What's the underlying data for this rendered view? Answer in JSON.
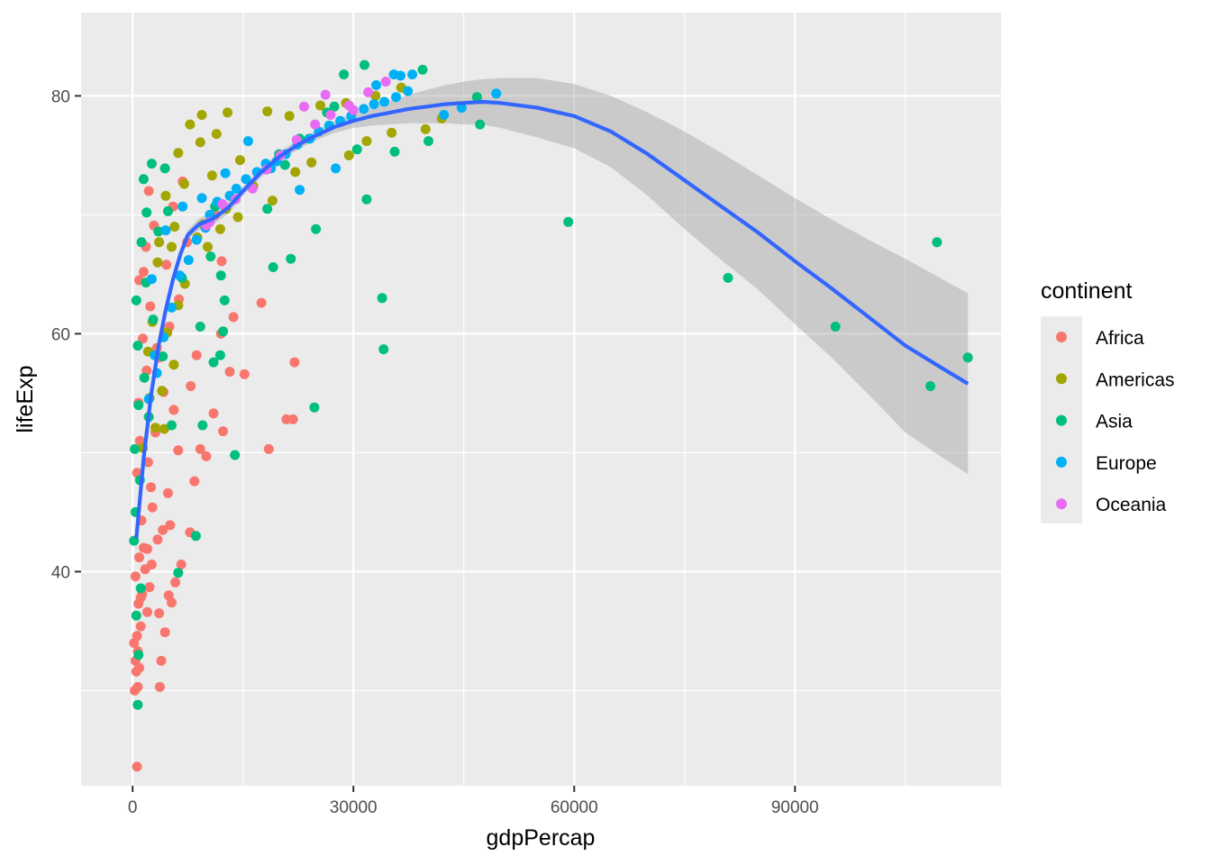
{
  "chart_data": {
    "type": "scatter",
    "xlabel": "gdpPercap",
    "ylabel": "lifeExp",
    "xlim": [
      -7000,
      118000
    ],
    "ylim": [
      22,
      87
    ],
    "x_ticks": [
      0,
      30000,
      60000,
      90000
    ],
    "x_tick_labels": [
      "0",
      "30000",
      "60000",
      "90000"
    ],
    "y_ticks": [
      40,
      60,
      80
    ],
    "y_tick_labels": [
      "40",
      "60",
      "80"
    ],
    "grid": true,
    "legend": {
      "title": "continent",
      "position": "right",
      "entries": [
        {
          "name": "Africa",
          "color": "#F8766D"
        },
        {
          "name": "Americas",
          "color": "#A3A500"
        },
        {
          "name": "Asia",
          "color": "#00BF7D"
        },
        {
          "name": "Europe",
          "color": "#00B0F6"
        },
        {
          "name": "Oceania",
          "color": "#E76BF3"
        }
      ]
    },
    "series": [
      {
        "name": "Africa",
        "color": "#F8766D",
        "points": [
          [
            600,
            23.6
          ],
          [
            300,
            30.0
          ],
          [
            700,
            30.3
          ],
          [
            3700,
            30.3
          ],
          [
            500,
            31.6
          ],
          [
            900,
            31.9
          ],
          [
            400,
            32.5
          ],
          [
            700,
            33.3
          ],
          [
            3900,
            32.5
          ],
          [
            200,
            34.0
          ],
          [
            600,
            34.6
          ],
          [
            1100,
            35.4
          ],
          [
            4400,
            34.9
          ],
          [
            2000,
            36.6
          ],
          [
            800,
            37.3
          ],
          [
            1300,
            38.1
          ],
          [
            2300,
            38.7
          ],
          [
            5300,
            37.4
          ],
          [
            4900,
            38.0
          ],
          [
            5800,
            39.1
          ],
          [
            400,
            39.6
          ],
          [
            1700,
            40.2
          ],
          [
            2600,
            40.6
          ],
          [
            6600,
            40.6
          ],
          [
            900,
            41.2
          ],
          [
            1500,
            42.0
          ],
          [
            3400,
            42.7
          ],
          [
            5100,
            43.9
          ],
          [
            7800,
            43.3
          ],
          [
            1200,
            44.3
          ],
          [
            2700,
            45.4
          ],
          [
            4800,
            46.6
          ],
          [
            8400,
            47.6
          ],
          [
            600,
            48.3
          ],
          [
            2100,
            49.2
          ],
          [
            6200,
            50.2
          ],
          [
            9200,
            50.3
          ],
          [
            10000,
            49.7
          ],
          [
            18500,
            50.3
          ],
          [
            1000,
            51.0
          ],
          [
            3100,
            51.7
          ],
          [
            5600,
            53.6
          ],
          [
            11000,
            53.3
          ],
          [
            12300,
            51.8
          ],
          [
            20900,
            52.8
          ],
          [
            21800,
            52.8
          ],
          [
            800,
            54.2
          ],
          [
            4200,
            55.1
          ],
          [
            7900,
            55.6
          ],
          [
            13200,
            56.8
          ],
          [
            15200,
            56.6
          ],
          [
            1900,
            56.9
          ],
          [
            3600,
            58.0
          ],
          [
            8700,
            58.2
          ],
          [
            22000,
            57.6
          ],
          [
            1400,
            59.6
          ],
          [
            5000,
            60.6
          ],
          [
            12000,
            60.0
          ],
          [
            13700,
            61.4
          ],
          [
            2400,
            62.3
          ],
          [
            6300,
            62.9
          ],
          [
            17500,
            62.6
          ],
          [
            900,
            64.5
          ],
          [
            4600,
            65.8
          ],
          [
            12100,
            66.1
          ],
          [
            1800,
            67.3
          ],
          [
            7400,
            67.7
          ],
          [
            2900,
            69.1
          ],
          [
            5500,
            70.7
          ],
          [
            11200,
            70.0
          ],
          [
            2200,
            72.0
          ],
          [
            6800,
            72.8
          ],
          [
            1500,
            65.2
          ],
          [
            3300,
            58.8
          ],
          [
            2500,
            47.1
          ],
          [
            4100,
            43.5
          ],
          [
            1100,
            37.8
          ],
          [
            2000,
            41.9
          ],
          [
            3600,
            36.5
          ]
        ]
      },
      {
        "name": "Americas",
        "color": "#A3A500",
        "points": [
          [
            1400,
            50.4
          ],
          [
            3100,
            52.1
          ],
          [
            4000,
            55.2
          ],
          [
            5600,
            57.4
          ],
          [
            2100,
            58.5
          ],
          [
            4700,
            60.1
          ],
          [
            6200,
            62.4
          ],
          [
            7100,
            64.2
          ],
          [
            3400,
            66.0
          ],
          [
            5300,
            67.3
          ],
          [
            8800,
            68.1
          ],
          [
            9600,
            69.2
          ],
          [
            12700,
            70.5
          ],
          [
            4500,
            71.6
          ],
          [
            7000,
            72.6
          ],
          [
            10800,
            73.3
          ],
          [
            14600,
            74.6
          ],
          [
            6200,
            75.2
          ],
          [
            9200,
            76.1
          ],
          [
            11400,
            76.8
          ],
          [
            7800,
            77.6
          ],
          [
            9400,
            78.4
          ],
          [
            12900,
            78.6
          ],
          [
            18300,
            78.7
          ],
          [
            21300,
            78.3
          ],
          [
            25500,
            79.2
          ],
          [
            29000,
            79.4
          ],
          [
            33000,
            80.0
          ],
          [
            36500,
            80.7
          ],
          [
            39800,
            77.2
          ],
          [
            42000,
            78.1
          ],
          [
            29400,
            75.0
          ],
          [
            31800,
            76.2
          ],
          [
            35200,
            76.9
          ],
          [
            24300,
            74.4
          ],
          [
            22100,
            73.6
          ],
          [
            16400,
            72.4
          ],
          [
            19000,
            71.2
          ],
          [
            14300,
            69.8
          ],
          [
            11900,
            68.8
          ],
          [
            10200,
            67.3
          ],
          [
            5700,
            69.0
          ],
          [
            3600,
            67.7
          ],
          [
            2700,
            61.0
          ],
          [
            2300,
            54.6
          ],
          [
            4300,
            52.0
          ]
        ]
      },
      {
        "name": "Asia",
        "color": "#00BF7D",
        "points": [
          [
            700,
            28.8
          ],
          [
            800,
            33.0
          ],
          [
            500,
            36.3
          ],
          [
            1100,
            38.6
          ],
          [
            200,
            42.6
          ],
          [
            400,
            45.0
          ],
          [
            1000,
            47.7
          ],
          [
            300,
            50.3
          ],
          [
            2200,
            53.0
          ],
          [
            5300,
            52.3
          ],
          [
            9500,
            52.3
          ],
          [
            800,
            54.0
          ],
          [
            1600,
            56.3
          ],
          [
            4100,
            58.1
          ],
          [
            11000,
            57.6
          ],
          [
            700,
            59.0
          ],
          [
            2800,
            61.2
          ],
          [
            9200,
            60.6
          ],
          [
            12300,
            60.2
          ],
          [
            500,
            62.8
          ],
          [
            1800,
            64.3
          ],
          [
            6700,
            64.7
          ],
          [
            12500,
            62.8
          ],
          [
            1200,
            67.7
          ],
          [
            3500,
            68.6
          ],
          [
            10600,
            66.5
          ],
          [
            19100,
            65.6
          ],
          [
            21500,
            66.3
          ],
          [
            1900,
            70.2
          ],
          [
            4800,
            70.3
          ],
          [
            11200,
            70.7
          ],
          [
            18300,
            70.5
          ],
          [
            31800,
            71.3
          ],
          [
            1500,
            73.0
          ],
          [
            4400,
            73.9
          ],
          [
            20700,
            74.2
          ],
          [
            30500,
            75.5
          ],
          [
            35600,
            75.3
          ],
          [
            40200,
            76.2
          ],
          [
            2600,
            74.3
          ],
          [
            24000,
            76.4
          ],
          [
            26400,
            78.6
          ],
          [
            28700,
            81.8
          ],
          [
            31500,
            82.6
          ],
          [
            39400,
            82.2
          ],
          [
            46800,
            79.9
          ],
          [
            47200,
            77.6
          ],
          [
            59200,
            69.4
          ],
          [
            80900,
            64.7
          ],
          [
            95500,
            60.6
          ],
          [
            108400,
            55.6
          ],
          [
            109300,
            67.7
          ],
          [
            113500,
            58.0
          ],
          [
            24700,
            53.8
          ],
          [
            13900,
            49.8
          ],
          [
            8600,
            43.0
          ],
          [
            6200,
            39.9
          ],
          [
            24900,
            68.8
          ],
          [
            33900,
            63.0
          ],
          [
            34100,
            58.7
          ],
          [
            27400,
            79.1
          ],
          [
            22700,
            76.4
          ],
          [
            19900,
            75.1
          ],
          [
            11900,
            58.2
          ],
          [
            12000,
            64.9
          ]
        ]
      },
      {
        "name": "Europe",
        "color": "#00B0F6",
        "points": [
          [
            2200,
            54.5
          ],
          [
            3000,
            58.2
          ],
          [
            4200,
            59.7
          ],
          [
            5300,
            62.2
          ],
          [
            6400,
            64.9
          ],
          [
            7600,
            66.2
          ],
          [
            8700,
            67.9
          ],
          [
            9900,
            68.9
          ],
          [
            10500,
            70.0
          ],
          [
            11500,
            71.1
          ],
          [
            13200,
            71.6
          ],
          [
            14100,
            72.2
          ],
          [
            15400,
            73.0
          ],
          [
            16900,
            73.6
          ],
          [
            18100,
            74.3
          ],
          [
            19600,
            74.5
          ],
          [
            20800,
            75.1
          ],
          [
            22400,
            75.9
          ],
          [
            24100,
            76.4
          ],
          [
            25300,
            77.0
          ],
          [
            26700,
            77.5
          ],
          [
            28200,
            77.9
          ],
          [
            29700,
            78.3
          ],
          [
            31400,
            78.9
          ],
          [
            32800,
            79.3
          ],
          [
            34200,
            79.5
          ],
          [
            35800,
            79.9
          ],
          [
            37400,
            80.4
          ],
          [
            33100,
            80.9
          ],
          [
            35500,
            81.8
          ],
          [
            36400,
            81.7
          ],
          [
            38000,
            81.8
          ],
          [
            42300,
            78.4
          ],
          [
            44700,
            79.0
          ],
          [
            49400,
            80.2
          ],
          [
            27600,
            73.9
          ],
          [
            22700,
            72.1
          ],
          [
            18800,
            73.9
          ],
          [
            15700,
            76.2
          ],
          [
            12600,
            73.5
          ],
          [
            9400,
            71.4
          ],
          [
            6800,
            70.7
          ],
          [
            4500,
            68.7
          ],
          [
            3300,
            56.7
          ],
          [
            2600,
            64.6
          ]
        ]
      },
      {
        "name": "Oceania",
        "color": "#E76BF3",
        "points": [
          [
            10000,
            69.1
          ],
          [
            10500,
            69.4
          ],
          [
            12200,
            70.9
          ],
          [
            14000,
            71.3
          ],
          [
            16300,
            72.2
          ],
          [
            18200,
            73.8
          ],
          [
            20100,
            75.0
          ],
          [
            22300,
            76.3
          ],
          [
            24800,
            77.6
          ],
          [
            26900,
            78.4
          ],
          [
            29400,
            79.2
          ],
          [
            32000,
            80.3
          ],
          [
            34400,
            81.2
          ],
          [
            30000,
            78.8
          ],
          [
            26200,
            80.1
          ],
          [
            23300,
            79.1
          ]
        ]
      }
    ],
    "smooth": {
      "method": "loess",
      "color": "#3366FF",
      "x": [
        500,
        1500,
        2500,
        3500,
        4500,
        5500,
        6500,
        7500,
        9000,
        11000,
        13000,
        15000,
        17500,
        20000,
        22500,
        25000,
        27500,
        30000,
        32500,
        35000,
        37500,
        40000,
        42500,
        45000,
        47500,
        50000,
        55000,
        60000,
        65000,
        70000,
        75000,
        80000,
        85000,
        90000,
        95000,
        100000,
        105000,
        110000,
        113500
      ],
      "y": [
        42.8,
        49.5,
        54.8,
        58.9,
        62.0,
        64.6,
        66.7,
        68.3,
        69.2,
        69.7,
        70.6,
        72.0,
        73.6,
        74.9,
        75.9,
        76.7,
        77.4,
        77.9,
        78.3,
        78.6,
        78.9,
        79.1,
        79.3,
        79.4,
        79.5,
        79.4,
        79.0,
        78.3,
        77.0,
        75.1,
        72.9,
        70.7,
        68.5,
        66.1,
        63.8,
        61.4,
        59.0,
        57.1,
        55.8
      ],
      "ci_upper": [
        44.0,
        50.5,
        55.6,
        59.6,
        62.6,
        65.1,
        67.1,
        68.7,
        69.7,
        70.2,
        71.1,
        72.4,
        74.0,
        75.3,
        76.3,
        77.1,
        77.9,
        78.5,
        79.1,
        79.6,
        80.1,
        80.5,
        80.9,
        81.2,
        81.4,
        81.5,
        81.5,
        81.0,
        80.0,
        78.6,
        77.0,
        75.2,
        73.3,
        71.4,
        69.6,
        67.9,
        66.3,
        64.6,
        63.4
      ],
      "ci_lower": [
        41.6,
        48.5,
        54.0,
        58.2,
        61.4,
        64.1,
        66.3,
        67.9,
        68.7,
        69.2,
        70.1,
        71.6,
        73.2,
        74.5,
        75.5,
        76.3,
        76.9,
        77.3,
        77.5,
        77.6,
        77.7,
        77.7,
        77.7,
        77.6,
        77.6,
        77.3,
        76.5,
        75.6,
        74.0,
        71.6,
        68.8,
        66.2,
        63.7,
        60.8,
        58.0,
        54.9,
        51.7,
        49.6,
        48.2
      ]
    }
  }
}
